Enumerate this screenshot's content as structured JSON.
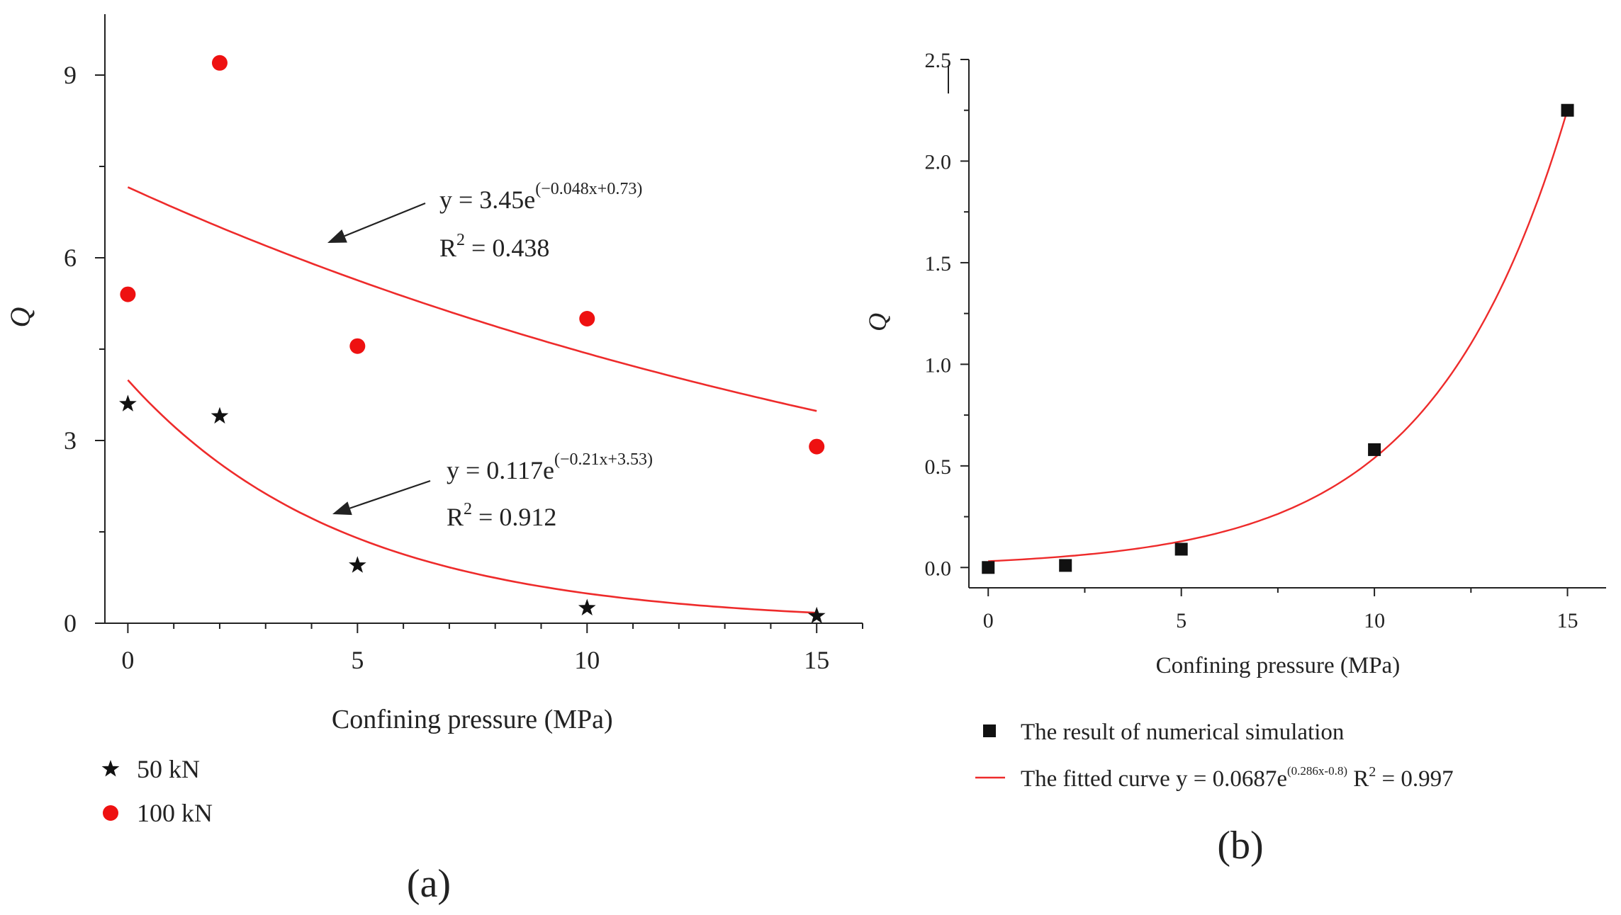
{
  "colors": {
    "axis": "#222222",
    "fit": "#ee2b2b",
    "dot": "#ee1111",
    "star": "#111111",
    "square": "#111111"
  },
  "chart_data": [
    {
      "panel": "a",
      "panel_label": "(a)",
      "type": "scatter",
      "xlabel": "Confining pressure (MPa)",
      "ylabel": "Q",
      "xlim": [
        -0.5,
        16
      ],
      "ylim": [
        0,
        10
      ],
      "xticks": [
        0,
        5,
        10,
        15
      ],
      "yticks": [
        0,
        3,
        6,
        9
      ],
      "series": [
        {
          "name": "50 kN",
          "marker": "star",
          "x": [
            0,
            2,
            5,
            10,
            15
          ],
          "y": [
            3.6,
            3.4,
            0.95,
            0.25,
            0.12
          ]
        },
        {
          "name": "100 kN",
          "marker": "circle",
          "x": [
            0,
            2,
            5,
            10,
            15
          ],
          "y": [
            5.4,
            9.2,
            4.55,
            5.0,
            2.9
          ]
        }
      ],
      "fits": [
        {
          "series": "100 kN",
          "equation": "y = 3.45e",
          "exponent": "(−0.048x+0.73)",
          "r2_label": "R",
          "r2_sup": "2",
          "r2_value": " = 0.438",
          "a": 3.45,
          "b": -0.048,
          "c": 0.73,
          "x_range": [
            0,
            15
          ]
        },
        {
          "series": "50 kN",
          "equation": "y = 0.117e",
          "exponent": "(−0.21x+3.53)",
          "r2_label": "R",
          "r2_sup": "2",
          "r2_value": " = 0.912",
          "a": 0.117,
          "b": -0.21,
          "c": 3.53,
          "x_range": [
            0,
            15
          ]
        }
      ],
      "legend": [
        "50 kN",
        "100 kN"
      ]
    },
    {
      "panel": "b",
      "panel_label": "(b)",
      "type": "scatter",
      "xlabel": "Confining pressure (MPa)",
      "ylabel": "Q",
      "xlim": [
        -0.5,
        16
      ],
      "ylim": [
        -0.1,
        2.5
      ],
      "xticks": [
        0,
        5,
        10,
        15
      ],
      "yticks": [
        0.0,
        0.5,
        1.0,
        1.5,
        2.0,
        2.5
      ],
      "ytick_labels": [
        "0.0",
        "0.5",
        "1.0",
        "1.5",
        "2.0",
        "2.5"
      ],
      "series": [
        {
          "name": "The result of numerical simulation",
          "marker": "square",
          "x": [
            0,
            2,
            5,
            10,
            15
          ],
          "y": [
            0.0,
            0.01,
            0.09,
            0.58,
            2.25
          ]
        }
      ],
      "fit": {
        "a": 0.0687,
        "b": 0.286,
        "c": -0.8,
        "x_range": [
          0,
          15
        ]
      },
      "legend": {
        "points": "The result of numerical simulation",
        "curve_prefix": "The fitted curve y = 0.0687e",
        "curve_exponent": "(0.286x-0.8)",
        "curve_suffix": " R",
        "curve_r2_sup": "2",
        "curve_r2_value": " = 0.997"
      }
    }
  ]
}
